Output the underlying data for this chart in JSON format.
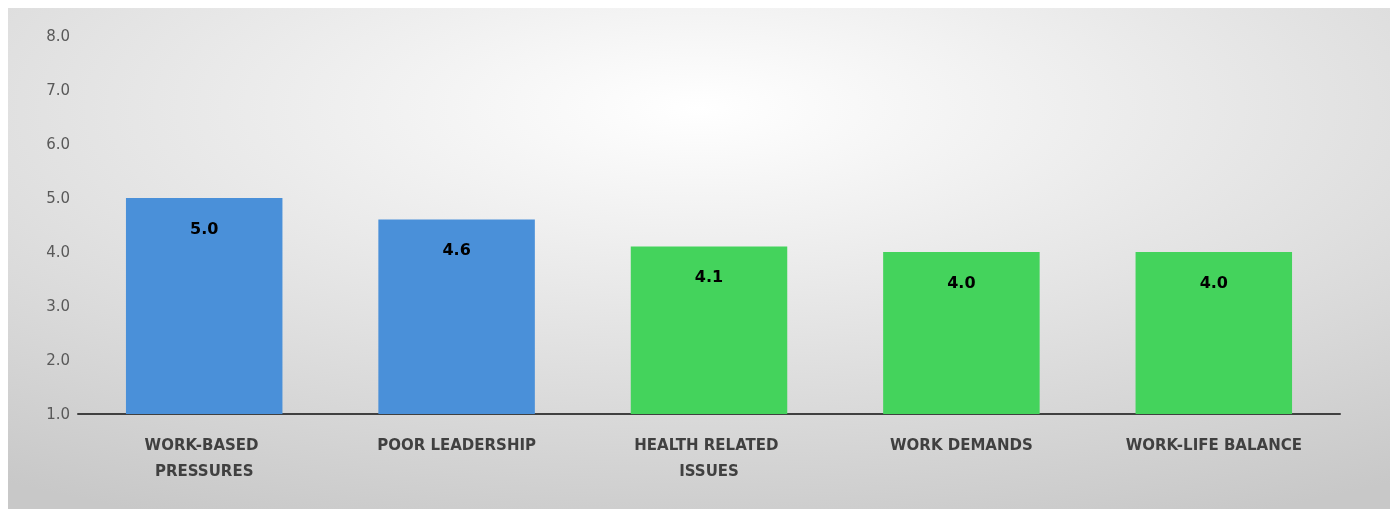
{
  "chart_data": {
    "type": "bar",
    "categories": [
      "WORK-BASED PRESSURES",
      "POOR LEADERSHIP",
      "HEALTH RELATED ISSUES",
      "WORK DEMANDS",
      "WORK-LIFE BALANCE"
    ],
    "values": [
      5.0,
      4.6,
      4.1,
      4.0,
      4.0
    ],
    "value_labels": [
      "5.0",
      "4.6",
      "4.1",
      "4.0",
      "4.0"
    ],
    "colors": [
      "#4a90d9",
      "#4a90d9",
      "#44d35c",
      "#44d35c",
      "#44d35c"
    ],
    "ylim": [
      1,
      8
    ],
    "yticks": [
      {
        "value": 1,
        "label": "1.0"
      },
      {
        "value": 2,
        "label": "2.0"
      },
      {
        "value": 3,
        "label": "3.0"
      },
      {
        "value": 4,
        "label": "4.0"
      },
      {
        "value": 5,
        "label": "5.0"
      },
      {
        "value": 6,
        "label": "6.0"
      },
      {
        "value": 7,
        "label": "7.0"
      },
      {
        "value": 8,
        "label": "8.0"
      }
    ]
  }
}
